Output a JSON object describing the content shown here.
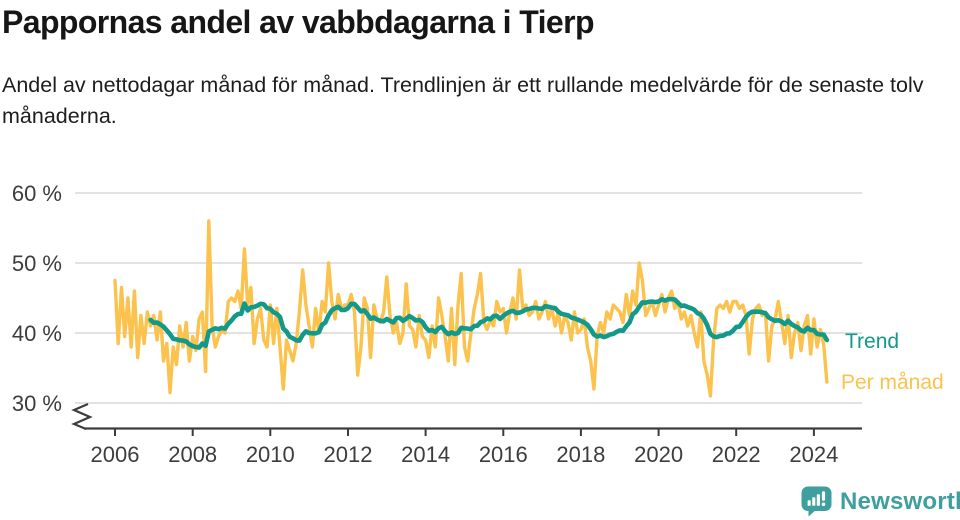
{
  "header": {
    "title": "Pappornas andel av vabbdagarna i Tierp",
    "subtitle": "Andel av nettodagar månad för månad. Trendlinjen är ett rullande medelvärde för de senaste tolv månaderna."
  },
  "legend": {
    "trend": "Trend",
    "monthly": "Per månad"
  },
  "branding": {
    "name": "Newsworthy",
    "icon": "bar-chart-speech-bubble-icon"
  },
  "colors": {
    "monthly_line": "#fbc24d",
    "trend_line": "#12998a",
    "gridline": "#d8d8d8",
    "axis": "#3d3d3d",
    "brand_teal": "#3f9e9e"
  },
  "chart_data": {
    "type": "line",
    "title": "Pappornas andel av vabbdagarna i Tierp",
    "unit": "%",
    "frequency": "monthly",
    "start": "2006-01",
    "end": "2024-05",
    "x_tick_labels": [
      "2006",
      "2008",
      "2010",
      "2012",
      "2014",
      "2016",
      "2018",
      "2020",
      "2022",
      "2024"
    ],
    "y_tick_labels": [
      "60 %",
      "50 %",
      "40 %",
      "30 %"
    ],
    "y_tick_values": [
      60,
      50,
      40,
      30
    ],
    "ylim": [
      30,
      62
    ],
    "axis_break": true,
    "grid": "horizontal",
    "legend_position": "right",
    "series": [
      {
        "name": "Per månad",
        "color": "#fbc24d",
        "values": [
          47.5,
          38.5,
          46.5,
          39.5,
          45,
          38,
          46,
          36.5,
          42.5,
          38.5,
          43,
          41,
          42.5,
          39,
          43,
          36,
          38.5,
          31.5,
          38,
          35.5,
          41,
          38,
          41.5,
          36,
          39.5,
          37.5,
          42,
          43,
          34.5,
          56,
          41,
          38,
          39.5,
          40.5,
          40,
          44.5,
          45,
          44.5,
          46,
          43.5,
          52,
          44,
          46.5,
          38.5,
          42,
          43.5,
          39,
          38,
          44,
          38.5,
          43.5,
          38,
          32,
          39,
          37.5,
          36,
          38.5,
          43,
          49,
          44,
          41,
          38,
          43.5,
          40,
          44.5,
          43,
          50,
          44.5,
          42,
          45.5,
          43.5,
          44,
          44,
          45.5,
          43,
          34,
          38,
          45,
          43.5,
          36.5,
          44,
          42,
          41.5,
          43,
          48,
          42.5,
          40,
          41.5,
          38.5,
          40,
          47,
          41,
          40.5,
          38,
          42.5,
          39.5,
          39,
          36.5,
          41,
          38,
          45,
          42.5,
          39.5,
          36,
          43.5,
          35.5,
          44,
          48.5,
          38,
          36,
          40,
          43.5,
          45.5,
          48.5,
          41.5,
          40.5,
          42,
          41,
          44.5,
          43,
          43.5,
          40,
          43,
          45,
          42,
          49,
          43.5,
          44,
          42.5,
          43,
          44.5,
          42,
          43,
          44.5,
          42,
          43.5,
          41,
          43,
          40,
          42.5,
          41.5,
          39,
          43,
          40,
          40.5,
          42,
          38,
          36,
          32,
          39.5,
          41.5,
          40,
          43,
          42,
          44,
          43.5,
          43,
          41.5,
          45.5,
          42.5,
          46,
          44,
          50,
          47.5,
          42.5,
          43.5,
          44.5,
          42.5,
          44,
          45.5,
          43,
          45,
          46,
          43.5,
          44.5,
          42,
          43,
          41,
          42.5,
          40,
          38,
          43,
          36,
          34,
          31,
          39,
          43.5,
          44,
          43.5,
          44.5,
          43,
          44.5,
          44.5,
          43.5,
          44,
          42.5,
          37,
          42,
          43.5,
          44,
          42.5,
          43,
          36,
          41,
          42,
          44.5,
          41.5,
          38.5,
          42.5,
          36.5,
          40,
          41.5,
          37.5,
          41,
          42.5,
          37,
          42,
          38,
          40.5,
          38.5,
          33
        ]
      },
      {
        "name": "Trend",
        "color": "#12998a",
        "derived": "rolling_mean_last_12_months"
      }
    ]
  }
}
